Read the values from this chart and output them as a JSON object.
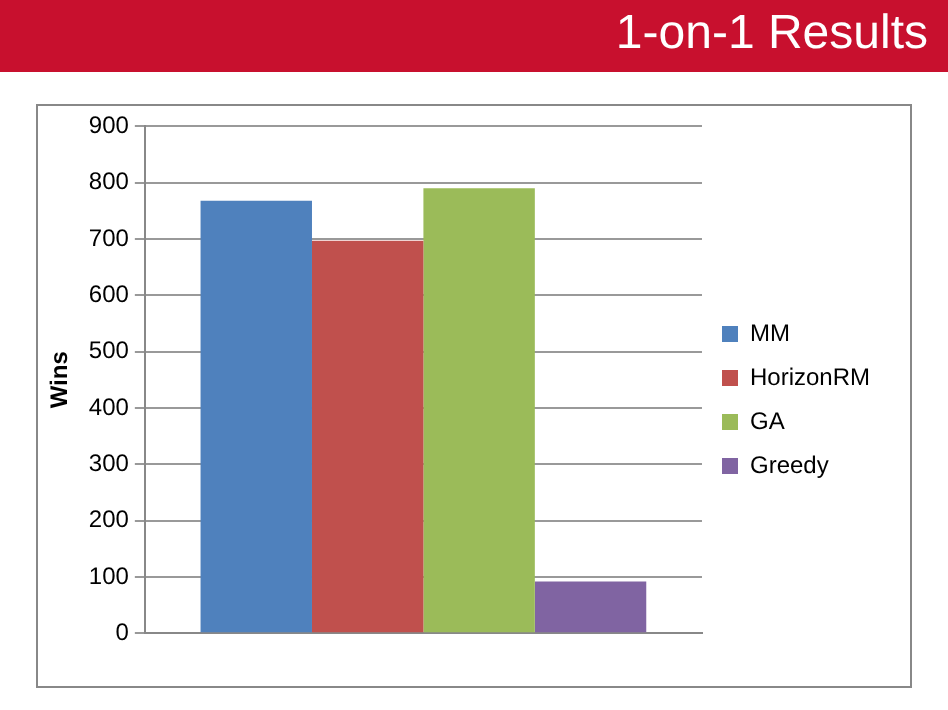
{
  "chart_data": {
    "type": "bar",
    "title": "1-on-1 Results",
    "ylabel": "Wins",
    "categories": [
      null
    ],
    "series": [
      {
        "name": "MM",
        "color": "#4f81bd",
        "values": [
          768
        ]
      },
      {
        "name": "HorizonRM",
        "color": "#c0504d",
        "values": [
          697
        ]
      },
      {
        "name": "GA",
        "color": "#9bbb59",
        "values": [
          790
        ]
      },
      {
        "name": "Greedy",
        "color": "#8064a2",
        "values": [
          92
        ]
      }
    ],
    "ylim": [
      0,
      900
    ],
    "yticks": [
      0,
      100,
      200,
      300,
      400,
      500,
      600,
      700,
      800,
      900
    ],
    "grid": "y",
    "legend": "right"
  }
}
